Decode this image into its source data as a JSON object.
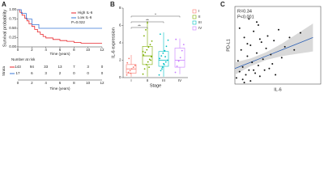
{
  "chart_data": [
    {
      "type": "survival",
      "panel": "A",
      "ylabel": "Survival probability",
      "xlabel": "Time (years)",
      "pvalue": "P=0.022",
      "xlim": [
        0,
        12
      ],
      "xticks": [
        0,
        2,
        4,
        6,
        8,
        10,
        12
      ],
      "ylim": [
        0,
        1
      ],
      "yticks": [
        {
          "value": 0,
          "label": "0.00"
        },
        {
          "value": 0.25,
          "label": "0.25"
        },
        {
          "value": 0.5,
          "label": "0.50"
        },
        {
          "value": 0.75,
          "label": "0.75"
        },
        {
          "value": 1,
          "label": "1.00"
        }
      ],
      "series": [
        {
          "name": "High IL-6",
          "color": "#e8262b",
          "x": [
            0,
            0.3,
            0.6,
            1,
            1.3,
            1.6,
            2,
            2.4,
            2.8,
            3.2,
            3.6,
            4,
            5,
            6,
            7,
            8,
            9,
            12
          ],
          "values": [
            1,
            0.93,
            0.85,
            0.77,
            0.7,
            0.62,
            0.55,
            0.47,
            0.4,
            0.34,
            0.28,
            0.24,
            0.2,
            0.17,
            0.15,
            0.12,
            0.1,
            0.1
          ]
        },
        {
          "name": "Low IL-6",
          "color": "#3a78d8",
          "x": [
            0,
            0.5,
            1.2,
            2,
            3,
            12
          ],
          "values": [
            1,
            0.9,
            0.75,
            0.6,
            0.5,
            0.5
          ]
        }
      ],
      "risk_table": {
        "title": "Number at risk",
        "strata_label": "Strata",
        "xlabel": "Time (years)",
        "rows": [
          [
            143,
            94,
            33,
            13,
            7,
            3,
            0
          ],
          [
            17,
            6,
            3,
            2,
            0,
            0,
            0
          ]
        ]
      }
    },
    {
      "type": "box",
      "panel": "B",
      "ylabel": "IL-6 expression",
      "xlabel": "Stage",
      "categories": [
        "I",
        "II",
        "III",
        "IV"
      ],
      "colors": [
        "#f8766d",
        "#7cae00",
        "#00bfc4",
        "#c77cff"
      ],
      "ylim": [
        0,
        8
      ],
      "yticks": [
        0,
        2,
        4,
        6,
        8
      ],
      "boxes": [
        {
          "low": 0.1,
          "q1": 0.5,
          "median": 1.0,
          "q3": 1.5,
          "high": 2.6
        },
        {
          "low": 0.1,
          "q1": 1.5,
          "median": 2.5,
          "q3": 3.6,
          "high": 6.5
        },
        {
          "low": 0.1,
          "q1": 1.3,
          "median": 2.0,
          "q3": 3.0,
          "high": 5.2
        },
        {
          "low": 0.4,
          "q1": 1.2,
          "median": 2.0,
          "q3": 3.4,
          "high": 4.5
        }
      ],
      "points": [
        [
          0.3,
          0.6,
          0.8,
          1.0,
          1.2,
          1.4,
          1.7,
          2.2,
          0.5
        ],
        [
          0.4,
          1.0,
          1.5,
          1.8,
          2.1,
          2.4,
          2.6,
          2.9,
          3.2,
          3.5,
          3.8,
          4.2,
          4.8,
          5.5,
          6.3,
          1.2,
          2.0,
          3.0
        ],
        [
          0.3,
          0.8,
          1.2,
          1.5,
          1.8,
          2.0,
          2.2,
          2.5,
          2.8,
          3.1,
          3.6,
          4.3,
          5.0,
          1.0,
          1.6,
          2.4
        ],
        [
          0.6,
          1.3,
          1.9,
          2.3,
          3.1,
          3.8,
          4.4
        ]
      ],
      "comparisons": [
        {
          "groups": [
            0,
            1
          ],
          "label": "**"
        },
        {
          "groups": [
            0,
            2
          ],
          "label": "**"
        },
        {
          "groups": [
            0,
            3
          ],
          "label": "*"
        }
      ]
    },
    {
      "type": "scatter",
      "panel": "C",
      "ylabel": "PD-L1",
      "xlabel": "IL-6",
      "annotations": [
        "R=0.34",
        "P<0.001"
      ],
      "xlim": [
        0,
        5.5
      ],
      "ylim": [
        0,
        5
      ],
      "color": "#111111",
      "fit_color": "#2b5fb4",
      "band_color": "#cfcfcf",
      "x": [
        0.1,
        0.2,
        0.3,
        0.4,
        0.5,
        0.5,
        0.6,
        0.7,
        0.8,
        0.9,
        1.0,
        1.0,
        1.1,
        1.2,
        1.3,
        1.4,
        1.5,
        1.5,
        1.6,
        1.7,
        1.8,
        1.9,
        2.0,
        2.1,
        2.2,
        2.3,
        2.5,
        2.6,
        2.8,
        3.0,
        3.2,
        3.5,
        3.8,
        4.2,
        0.3,
        0.6,
        0.9,
        1.2,
        1.6,
        2.4,
        0.8,
        1.4
      ],
      "y": [
        0.4,
        1.5,
        0.8,
        2.2,
        0.3,
        1.1,
        3.0,
        0.6,
        1.8,
        0.9,
        2.5,
        0.2,
        1.4,
        3.4,
        0.7,
        2.0,
        1.2,
        3.8,
        0.5,
        2.7,
        1.6,
        0.9,
        2.3,
        3.1,
        1.0,
        1.9,
        2.8,
        0.6,
        3.5,
        1.7,
        2.4,
        3.0,
        2.2,
        3.3,
        3.6,
        0.1,
        4.2,
        0.9,
        2.9,
        1.3,
        2.6,
        4.0
      ],
      "fit": {
        "x": [
          0,
          1,
          2,
          3,
          4,
          5
        ],
        "values": [
          1.0,
          1.4,
          1.8,
          2.2,
          2.6,
          3.0
        ],
        "lower": [
          0.6,
          1.15,
          1.55,
          1.8,
          1.95,
          2.1
        ],
        "upper": [
          1.4,
          1.65,
          2.05,
          2.6,
          3.25,
          3.9
        ]
      }
    }
  ]
}
